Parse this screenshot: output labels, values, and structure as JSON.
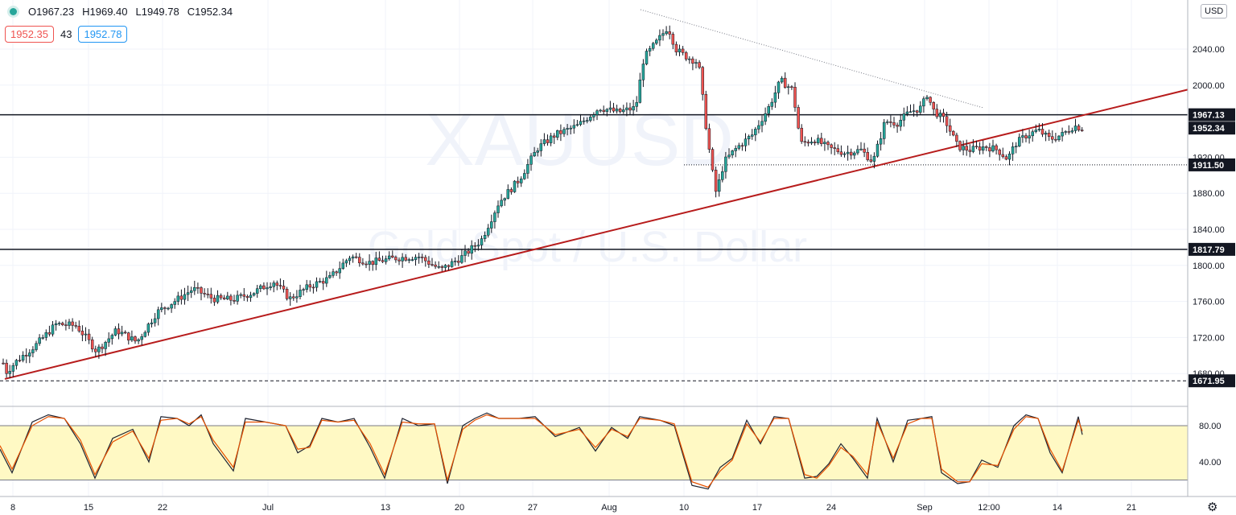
{
  "header": {
    "open": "O1967.23",
    "high": "H1969.40",
    "low": "L1949.78",
    "close": "C1952.34",
    "bid": "1952.35",
    "spread": "43",
    "ask": "1952.78"
  },
  "currency_label": "USD",
  "colors": {
    "up": "#26a69a",
    "down": "#ef5350",
    "trendline": "#b71c1c",
    "stoch_k": "#1e2230",
    "stoch_d": "#e65100",
    "stoch_band": "#fff9c4"
  },
  "icons": {
    "settings": "gear-icon",
    "status": "market-status-dot"
  },
  "chart_data": [
    {
      "type": "candlestick",
      "ylim": [
        1660,
        2080
      ],
      "yticks": [
        1680,
        1720,
        1760,
        1800,
        1840,
        1880,
        1920,
        2000,
        2040
      ],
      "ytick_labels": [
        "1680.00",
        "1720.00",
        "1760.00",
        "1800.00",
        "1840.00",
        "1880.00",
        "1920.00",
        "2000.00",
        "2040.00"
      ],
      "xticks": [
        "8",
        "15",
        "22",
        "Jul",
        "13",
        "20",
        "27",
        "Aug",
        "10",
        "17",
        "24",
        "Sep",
        "12:00",
        "14",
        "21"
      ],
      "price_levels": [
        {
          "label": "1967.13",
          "value": 1967.13,
          "style": "solid"
        },
        {
          "label": "1952.34",
          "value": 1952.34,
          "style": "current"
        },
        {
          "label": "1911.50",
          "value": 1911.5,
          "style": "dotted"
        },
        {
          "label": "1817.79",
          "value": 1817.79,
          "style": "solid"
        },
        {
          "label": "1671.95",
          "value": 1671.95,
          "style": "dashed"
        }
      ],
      "path": [
        [
          0,
          1715
        ],
        [
          6,
          1680
        ],
        [
          22,
          1695
        ],
        [
          45,
          1712
        ],
        [
          70,
          1735
        ],
        [
          95,
          1733
        ],
        [
          120,
          1705
        ],
        [
          145,
          1728
        ],
        [
          170,
          1715
        ],
        [
          195,
          1748
        ],
        [
          220,
          1762
        ],
        [
          240,
          1774
        ],
        [
          265,
          1763
        ],
        [
          290,
          1762
        ],
        [
          315,
          1770
        ],
        [
          340,
          1782
        ],
        [
          360,
          1763
        ],
        [
          385,
          1777
        ],
        [
          410,
          1786
        ],
        [
          435,
          1810
        ],
        [
          460,
          1803
        ],
        [
          490,
          1808
        ],
        [
          520,
          1810
        ],
        [
          548,
          1795
        ],
        [
          575,
          1810
        ],
        [
          598,
          1828
        ],
        [
          620,
          1870
        ],
        [
          645,
          1895
        ],
        [
          668,
          1930
        ],
        [
          690,
          1945
        ],
        [
          718,
          1955
        ],
        [
          745,
          1975
        ],
        [
          768,
          1970
        ],
        [
          790,
          1975
        ],
        [
          800,
          2030
        ],
        [
          818,
          2050
        ],
        [
          830,
          2065
        ],
        [
          840,
          2040
        ],
        [
          850,
          2033
        ],
        [
          868,
          2025
        ],
        [
          878,
          1950
        ],
        [
          885,
          1905
        ],
        [
          890,
          1880
        ],
        [
          900,
          1915
        ],
        [
          915,
          1930
        ],
        [
          935,
          1945
        ],
        [
          955,
          1975
        ],
        [
          970,
          2005
        ],
        [
          985,
          1995
        ],
        [
          995,
          1935
        ],
        [
          1012,
          1940
        ],
        [
          1030,
          1930
        ],
        [
          1050,
          1925
        ],
        [
          1070,
          1928
        ],
        [
          1085,
          1915
        ],
        [
          1100,
          1960
        ],
        [
          1115,
          1958
        ],
        [
          1130,
          1970
        ],
        [
          1145,
          1975
        ],
        [
          1152,
          1990
        ],
        [
          1160,
          1972
        ],
        [
          1175,
          1960
        ],
        [
          1190,
          1932
        ],
        [
          1205,
          1928
        ],
        [
          1225,
          1932
        ],
        [
          1240,
          1928
        ],
        [
          1252,
          1918
        ],
        [
          1262,
          1935
        ],
        [
          1275,
          1944
        ],
        [
          1290,
          1950
        ],
        [
          1305,
          1940
        ],
        [
          1320,
          1945
        ],
        [
          1335,
          1955
        ],
        [
          1345,
          1952
        ]
      ],
      "trend_support": [
        [
          1660,
          1660
        ],
        [
          1476,
          1995
        ]
      ],
      "trend_resistance": [
        [
          796,
          2086
        ],
        [
          1222,
          1983
        ]
      ]
    },
    {
      "type": "line",
      "ylim": [
        5,
        100
      ],
      "yticks": [
        40,
        80
      ],
      "ytick_labels": [
        "40.00",
        "80.00"
      ],
      "band": [
        20,
        80
      ],
      "series": [
        {
          "role": "k",
          "values": [
            [
              0,
              54
            ],
            [
              15,
              28
            ],
            [
              40,
              84
            ],
            [
              60,
              92
            ],
            [
              80,
              88
            ],
            [
              100,
              60
            ],
            [
              118,
              22
            ],
            [
              140,
              66
            ],
            [
              165,
              76
            ],
            [
              185,
              40
            ],
            [
              200,
              90
            ],
            [
              220,
              88
            ],
            [
              235,
              80
            ],
            [
              250,
              92
            ],
            [
              265,
              60
            ],
            [
              290,
              30
            ],
            [
              305,
              88
            ],
            [
              330,
              84
            ],
            [
              355,
              80
            ],
            [
              370,
              50
            ],
            [
              385,
              58
            ],
            [
              400,
              88
            ],
            [
              420,
              84
            ],
            [
              440,
              88
            ],
            [
              460,
              56
            ],
            [
              478,
              22
            ],
            [
              500,
              88
            ],
            [
              520,
              80
            ],
            [
              540,
              82
            ],
            [
              556,
              16
            ],
            [
              575,
              80
            ],
            [
              590,
              88
            ],
            [
              605,
              94
            ],
            [
              620,
              88
            ],
            [
              645,
              88
            ],
            [
              665,
              90
            ],
            [
              690,
              68
            ],
            [
              720,
              78
            ],
            [
              740,
              52
            ],
            [
              760,
              78
            ],
            [
              780,
              66
            ],
            [
              795,
              90
            ],
            [
              820,
              86
            ],
            [
              838,
              80
            ],
            [
              860,
              14
            ],
            [
              880,
              10
            ],
            [
              895,
              34
            ],
            [
              910,
              44
            ],
            [
              928,
              86
            ],
            [
              945,
              60
            ],
            [
              962,
              90
            ],
            [
              980,
              88
            ],
            [
              1000,
              22
            ],
            [
              1015,
              24
            ],
            [
              1030,
              38
            ],
            [
              1045,
              60
            ],
            [
              1060,
              44
            ],
            [
              1078,
              22
            ],
            [
              1090,
              88
            ],
            [
              1110,
              40
            ],
            [
              1128,
              86
            ],
            [
              1145,
              88
            ],
            [
              1158,
              90
            ],
            [
              1170,
              28
            ],
            [
              1190,
              16
            ],
            [
              1205,
              18
            ],
            [
              1220,
              42
            ],
            [
              1240,
              34
            ],
            [
              1260,
              80
            ],
            [
              1275,
              92
            ],
            [
              1290,
              88
            ],
            [
              1305,
              50
            ],
            [
              1320,
              28
            ],
            [
              1340,
              90
            ],
            [
              1345,
              70
            ]
          ]
        },
        {
          "role": "d",
          "values": [
            [
              0,
              58
            ],
            [
              15,
              32
            ],
            [
              40,
              80
            ],
            [
              60,
              90
            ],
            [
              80,
              88
            ],
            [
              100,
              64
            ],
            [
              118,
              26
            ],
            [
              140,
              62
            ],
            [
              165,
              74
            ],
            [
              185,
              44
            ],
            [
              200,
              86
            ],
            [
              220,
              88
            ],
            [
              235,
              82
            ],
            [
              250,
              90
            ],
            [
              265,
              64
            ],
            [
              290,
              34
            ],
            [
              305,
              84
            ],
            [
              330,
              84
            ],
            [
              355,
              80
            ],
            [
              370,
              54
            ],
            [
              385,
              56
            ],
            [
              400,
              86
            ],
            [
              420,
              84
            ],
            [
              440,
              86
            ],
            [
              460,
              60
            ],
            [
              478,
              26
            ],
            [
              500,
              84
            ],
            [
              520,
              82
            ],
            [
              540,
              82
            ],
            [
              556,
              20
            ],
            [
              575,
              76
            ],
            [
              590,
              86
            ],
            [
              605,
              92
            ],
            [
              620,
              88
            ],
            [
              645,
              88
            ],
            [
              665,
              88
            ],
            [
              690,
              70
            ],
            [
              720,
              76
            ],
            [
              740,
              56
            ],
            [
              760,
              76
            ],
            [
              780,
              68
            ],
            [
              795,
              88
            ],
            [
              820,
              86
            ],
            [
              838,
              82
            ],
            [
              860,
              18
            ],
            [
              880,
              12
            ],
            [
              895,
              30
            ],
            [
              910,
              42
            ],
            [
              928,
              82
            ],
            [
              945,
              62
            ],
            [
              962,
              88
            ],
            [
              980,
              88
            ],
            [
              1000,
              26
            ],
            [
              1015,
              22
            ],
            [
              1030,
              36
            ],
            [
              1045,
              56
            ],
            [
              1060,
              46
            ],
            [
              1078,
              26
            ],
            [
              1090,
              84
            ],
            [
              1110,
              44
            ],
            [
              1128,
              82
            ],
            [
              1145,
              88
            ],
            [
              1158,
              88
            ],
            [
              1170,
              32
            ],
            [
              1190,
              18
            ],
            [
              1205,
              18
            ],
            [
              1220,
              38
            ],
            [
              1240,
              36
            ],
            [
              1260,
              76
            ],
            [
              1275,
              90
            ],
            [
              1290,
              88
            ],
            [
              1305,
              54
            ],
            [
              1320,
              30
            ],
            [
              1340,
              86
            ],
            [
              1345,
              74
            ]
          ]
        }
      ]
    }
  ]
}
